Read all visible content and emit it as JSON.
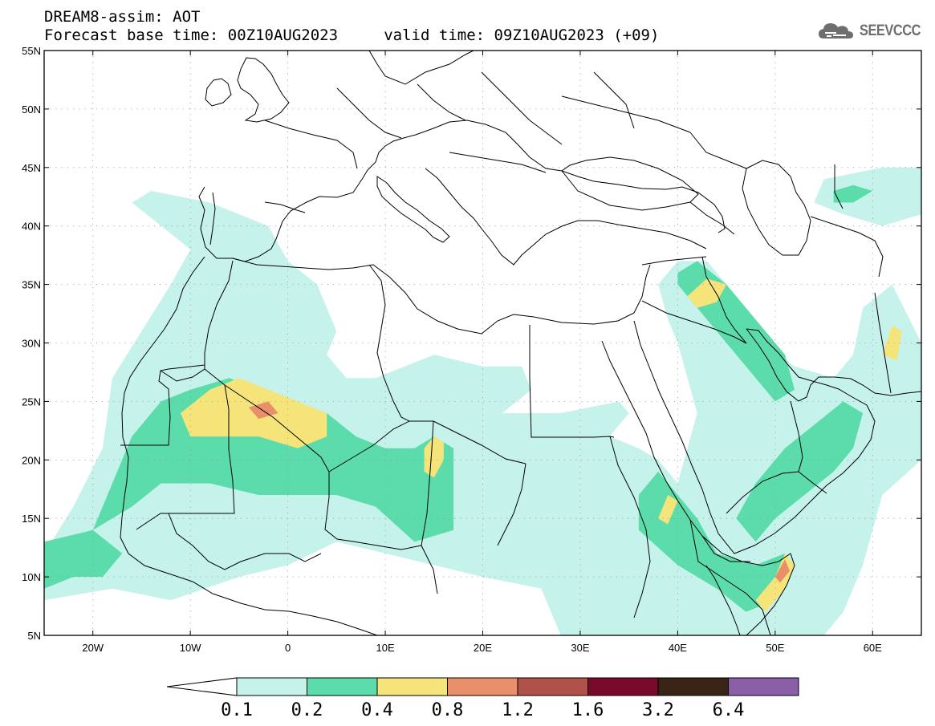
{
  "title_line1": "DREAM8-assim: AOT",
  "title_line2": "Forecast base time: 00Z10AUG2023     valid time: 09Z10AUG2023 (+09)",
  "logo": {
    "text": "SEEVCCC",
    "icon": "cloud-icon",
    "color": "#6e6e6e"
  },
  "map": {
    "lon_range": [
      -25,
      65
    ],
    "lat_range": [
      5,
      55
    ],
    "lat_ticks": [
      {
        "value": 55,
        "label": "55N"
      },
      {
        "value": 50,
        "label": "50N"
      },
      {
        "value": 45,
        "label": "45N"
      },
      {
        "value": 40,
        "label": "40N"
      },
      {
        "value": 35,
        "label": "35N"
      },
      {
        "value": 30,
        "label": "30N"
      },
      {
        "value": 25,
        "label": "25N"
      },
      {
        "value": 20,
        "label": "20N"
      },
      {
        "value": 15,
        "label": "15N"
      },
      {
        "value": 10,
        "label": "10N"
      },
      {
        "value": 5,
        "label": "5N"
      }
    ],
    "lon_ticks": [
      {
        "value": -20,
        "label": "20W"
      },
      {
        "value": -10,
        "label": "10W"
      },
      {
        "value": 0,
        "label": "0"
      },
      {
        "value": 10,
        "label": "10E"
      },
      {
        "value": 20,
        "label": "20E"
      },
      {
        "value": 30,
        "label": "30E"
      },
      {
        "value": 40,
        "label": "40E"
      },
      {
        "value": 50,
        "label": "50E"
      },
      {
        "value": 60,
        "label": "60E"
      }
    ],
    "grid": "dotted",
    "regions": [
      {
        "level": 1,
        "lonlat": [
          [
            -25,
            12
          ],
          [
            -22,
            16
          ],
          [
            -19,
            21
          ],
          [
            -18,
            27
          ],
          [
            -15,
            31
          ],
          [
            -12,
            35
          ],
          [
            -10,
            38
          ],
          [
            -16,
            42
          ],
          [
            -14,
            43
          ],
          [
            -8,
            42
          ],
          [
            -2,
            40
          ],
          [
            0,
            37
          ],
          [
            3,
            35
          ],
          [
            4,
            33
          ],
          [
            5,
            31
          ],
          [
            4,
            29
          ],
          [
            6,
            27
          ],
          [
            9,
            27
          ],
          [
            12,
            28
          ],
          [
            15,
            29
          ],
          [
            20,
            28
          ],
          [
            24,
            28
          ],
          [
            25,
            26
          ],
          [
            22,
            24
          ],
          [
            28,
            24
          ],
          [
            34,
            25
          ],
          [
            35,
            24
          ],
          [
            33,
            22
          ],
          [
            36,
            21
          ],
          [
            38,
            20
          ],
          [
            40,
            18
          ],
          [
            42,
            24
          ],
          [
            40,
            30
          ],
          [
            39,
            32
          ],
          [
            38,
            35
          ],
          [
            40,
            37
          ],
          [
            43,
            37
          ],
          [
            46,
            34
          ],
          [
            49,
            30
          ],
          [
            52,
            28
          ],
          [
            56,
            27
          ],
          [
            58,
            29
          ],
          [
            59,
            33
          ],
          [
            62,
            35
          ],
          [
            65,
            30
          ],
          [
            65,
            20
          ],
          [
            61,
            17
          ],
          [
            59,
            11
          ],
          [
            57,
            7
          ],
          [
            55,
            5
          ],
          [
            28,
            5
          ],
          [
            26,
            9
          ],
          [
            20,
            10
          ],
          [
            15,
            11
          ],
          [
            10,
            12
          ],
          [
            5,
            13
          ],
          [
            0,
            11
          ],
          [
            -5,
            10
          ],
          [
            -12,
            8
          ],
          [
            -18,
            9
          ],
          [
            -25,
            8
          ]
        ]
      },
      {
        "level": 1,
        "lonlat": [
          [
            55,
            44
          ],
          [
            58,
            44.5
          ],
          [
            61,
            45
          ],
          [
            65,
            45
          ],
          [
            65,
            41
          ],
          [
            61,
            40
          ],
          [
            57,
            41
          ],
          [
            54,
            42
          ]
        ]
      },
      {
        "level": 2,
        "lonlat": [
          [
            -20,
            14
          ],
          [
            -16,
            22
          ],
          [
            -13,
            25
          ],
          [
            -10,
            26
          ],
          [
            -6,
            27
          ],
          [
            -3,
            26
          ],
          [
            0,
            25
          ],
          [
            4,
            24
          ],
          [
            7,
            22
          ],
          [
            10,
            21
          ],
          [
            13,
            21
          ],
          [
            15,
            22
          ],
          [
            17,
            21
          ],
          [
            17,
            14
          ],
          [
            13,
            13
          ],
          [
            9,
            16
          ],
          [
            5,
            17
          ],
          [
            1,
            17
          ],
          [
            -3,
            17
          ],
          [
            -8,
            18
          ],
          [
            -13,
            18
          ],
          [
            -16,
            16
          ]
        ]
      },
      {
        "level": 2,
        "lonlat": [
          [
            -25,
            9
          ],
          [
            -22,
            10
          ],
          [
            -19,
            10
          ],
          [
            -17,
            12
          ],
          [
            -20,
            14
          ],
          [
            -25,
            13
          ]
        ]
      },
      {
        "level": 2,
        "lonlat": [
          [
            40,
            36
          ],
          [
            42,
            37
          ],
          [
            45,
            35
          ],
          [
            48,
            32
          ],
          [
            51,
            29
          ],
          [
            52,
            26
          ],
          [
            50,
            25
          ],
          [
            48,
            27
          ],
          [
            46,
            29
          ],
          [
            44,
            31
          ],
          [
            42,
            33
          ],
          [
            40,
            35
          ]
        ]
      },
      {
        "level": 2,
        "lonlat": [
          [
            48,
            13
          ],
          [
            50,
            15
          ],
          [
            53,
            17
          ],
          [
            56,
            19
          ],
          [
            58,
            21
          ],
          [
            59,
            24
          ],
          [
            57,
            25
          ],
          [
            54,
            23
          ],
          [
            51,
            21
          ],
          [
            48,
            18
          ],
          [
            46,
            15
          ]
        ]
      },
      {
        "level": 2,
        "lonlat": [
          [
            36,
            17
          ],
          [
            38,
            19
          ],
          [
            40,
            17
          ],
          [
            42,
            15
          ],
          [
            44,
            12
          ],
          [
            48,
            11
          ],
          [
            51,
            12
          ],
          [
            50,
            8
          ],
          [
            47,
            7
          ],
          [
            44,
            9
          ],
          [
            40,
            11
          ],
          [
            36,
            14
          ]
        ]
      },
      {
        "level": 2,
        "lonlat": [
          [
            56,
            43
          ],
          [
            58,
            43.5
          ],
          [
            60,
            43
          ],
          [
            58,
            42
          ],
          [
            56,
            42
          ]
        ]
      },
      {
        "level": 3,
        "lonlat": [
          [
            -11,
            24
          ],
          [
            -8,
            26
          ],
          [
            -5,
            27
          ],
          [
            -2,
            26
          ],
          [
            1,
            25
          ],
          [
            4,
            24
          ],
          [
            4,
            22
          ],
          [
            1,
            21
          ],
          [
            -3,
            22
          ],
          [
            -7,
            22
          ],
          [
            -10,
            22
          ]
        ]
      },
      {
        "level": 3,
        "lonlat": [
          [
            15,
            18.5
          ],
          [
            16,
            20
          ],
          [
            16,
            21.5
          ],
          [
            15,
            22
          ],
          [
            14,
            21
          ],
          [
            14,
            19
          ]
        ]
      },
      {
        "level": 3,
        "lonlat": [
          [
            41,
            34
          ],
          [
            43,
            35.5
          ],
          [
            45,
            35
          ],
          [
            44,
            33.5
          ],
          [
            42,
            33
          ]
        ]
      },
      {
        "level": 3,
        "lonlat": [
          [
            48,
            8
          ],
          [
            50,
            10
          ],
          [
            51,
            12
          ],
          [
            52,
            11
          ],
          [
            51,
            9
          ],
          [
            49,
            7
          ]
        ]
      },
      {
        "level": 3,
        "lonlat": [
          [
            38,
            15
          ],
          [
            39,
            17
          ],
          [
            40,
            16.5
          ],
          [
            39,
            14.5
          ]
        ]
      },
      {
        "level": 3,
        "lonlat": [
          [
            61,
            29
          ],
          [
            62,
            31.5
          ],
          [
            63,
            31
          ],
          [
            62.5,
            28.5
          ]
        ]
      },
      {
        "level": 4,
        "lonlat": [
          [
            -4,
            24.5
          ],
          [
            -2,
            25
          ],
          [
            -1,
            24
          ],
          [
            -3,
            23.5
          ]
        ]
      },
      {
        "level": 4,
        "lonlat": [
          [
            50,
            10
          ],
          [
            51,
            11.5
          ],
          [
            51.5,
            10.5
          ],
          [
            50.5,
            9.5
          ]
        ]
      }
    ]
  },
  "colorbar": {
    "labels": [
      "0.1",
      "0.2",
      "0.4",
      "0.8",
      "1.2",
      "1.6",
      "3.2",
      "6.4"
    ],
    "colors": [
      "#ffffff",
      "#c6f2ec",
      "#5bdcaa",
      "#f4e47a",
      "#e9906a",
      "#b0524a",
      "#7a0a2a",
      "#3a2415",
      "#8a5fa8"
    ]
  }
}
